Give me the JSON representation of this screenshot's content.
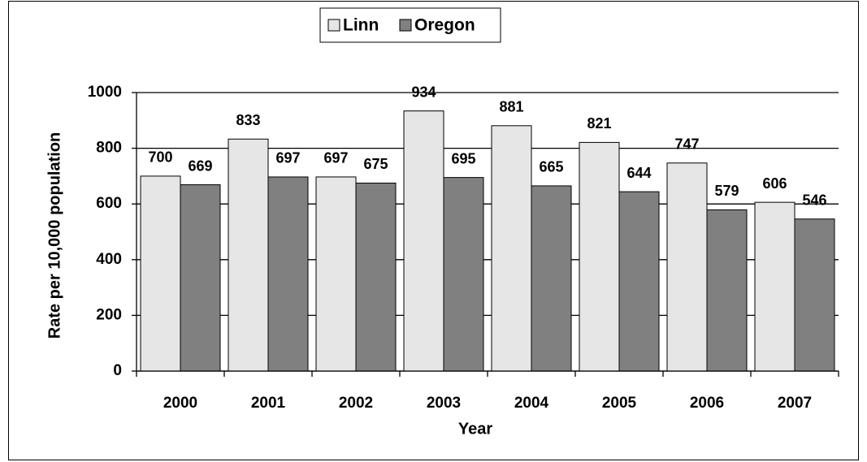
{
  "chart_data": {
    "type": "bar",
    "x_label": "Year",
    "y_label": "Rate per 10,000 population",
    "categories": [
      "2000",
      "2001",
      "2002",
      "2003",
      "2004",
      "2005",
      "2006",
      "2007"
    ],
    "series": [
      {
        "name": "Linn",
        "color": "#e6e6e6",
        "values": [
          700,
          833,
          697,
          934,
          881,
          821,
          747,
          606
        ]
      },
      {
        "name": "Oregon",
        "color": "#808080",
        "values": [
          669,
          697,
          675,
          695,
          665,
          644,
          579,
          546
        ]
      }
    ],
    "ylim": [
      0,
      1000
    ],
    "yticks": [
      0,
      200,
      400,
      600,
      800,
      1000
    ],
    "grid": true,
    "legend": "top"
  }
}
